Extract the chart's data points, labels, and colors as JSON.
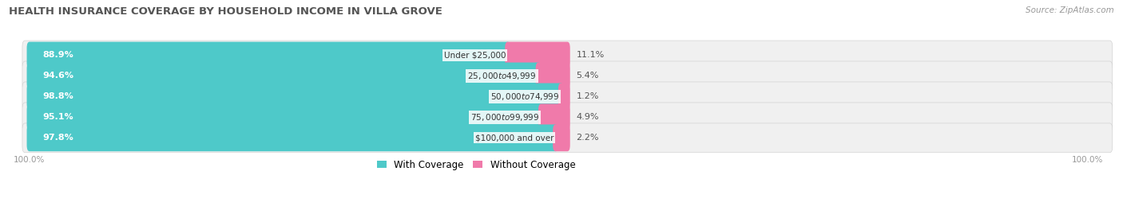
{
  "title": "HEALTH INSURANCE COVERAGE BY HOUSEHOLD INCOME IN VILLA GROVE",
  "source": "Source: ZipAtlas.com",
  "categories": [
    "Under $25,000",
    "$25,000 to $49,999",
    "$50,000 to $74,999",
    "$75,000 to $99,999",
    "$100,000 and over"
  ],
  "with_coverage": [
    88.9,
    94.6,
    98.8,
    95.1,
    97.8
  ],
  "without_coverage": [
    11.1,
    5.4,
    1.2,
    4.9,
    2.2
  ],
  "color_with": "#4ec9c9",
  "color_without": "#f07aaa",
  "row_bg": "#f0f0f0",
  "title_fontsize": 9.5,
  "source_fontsize": 7.5,
  "bar_label_fontsize": 8,
  "cat_label_fontsize": 7.5,
  "pct_label_fontsize": 8,
  "tick_fontsize": 7.5,
  "legend_fontsize": 8.5,
  "total_bar_pct": 60.0,
  "xlim_max": 120.0
}
